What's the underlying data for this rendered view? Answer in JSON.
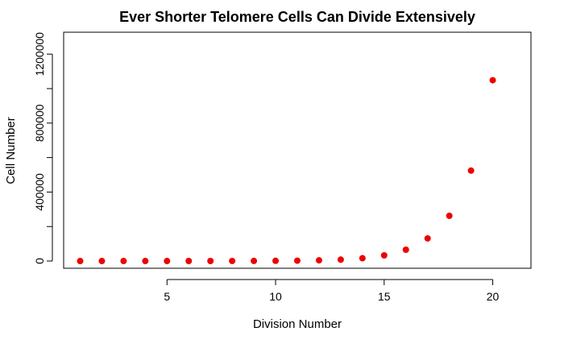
{
  "chart_data": {
    "type": "scatter",
    "title": "Ever Shorter Telomere Cells Can Divide Extensively",
    "xlabel": "Division Number",
    "ylabel": "Cell Number",
    "xlim": [
      0.24,
      21.76
    ],
    "ylim": [
      -41943,
      1327000
    ],
    "x_ticks": [
      5,
      10,
      15,
      20
    ],
    "x_tick_labels": [
      "5",
      "10",
      "15",
      "20"
    ],
    "y_ticks": [
      0,
      200000,
      400000,
      600000,
      800000,
      1000000,
      1200000
    ],
    "y_tick_labels": [
      "0",
      "",
      "400000",
      "",
      "800000",
      "",
      "1200000"
    ],
    "point_color": "#ee0000",
    "series": [
      {
        "x": [
          1,
          2,
          3,
          4,
          5,
          6,
          7,
          8,
          9,
          10,
          11,
          12,
          13,
          14,
          15,
          16,
          17,
          18,
          19,
          20
        ],
        "y": [
          2,
          4,
          8,
          16,
          32,
          64,
          128,
          256,
          512,
          1024,
          2048,
          4096,
          8192,
          16384,
          32768,
          65536,
          131072,
          262144,
          524288,
          1048576
        ]
      }
    ]
  }
}
